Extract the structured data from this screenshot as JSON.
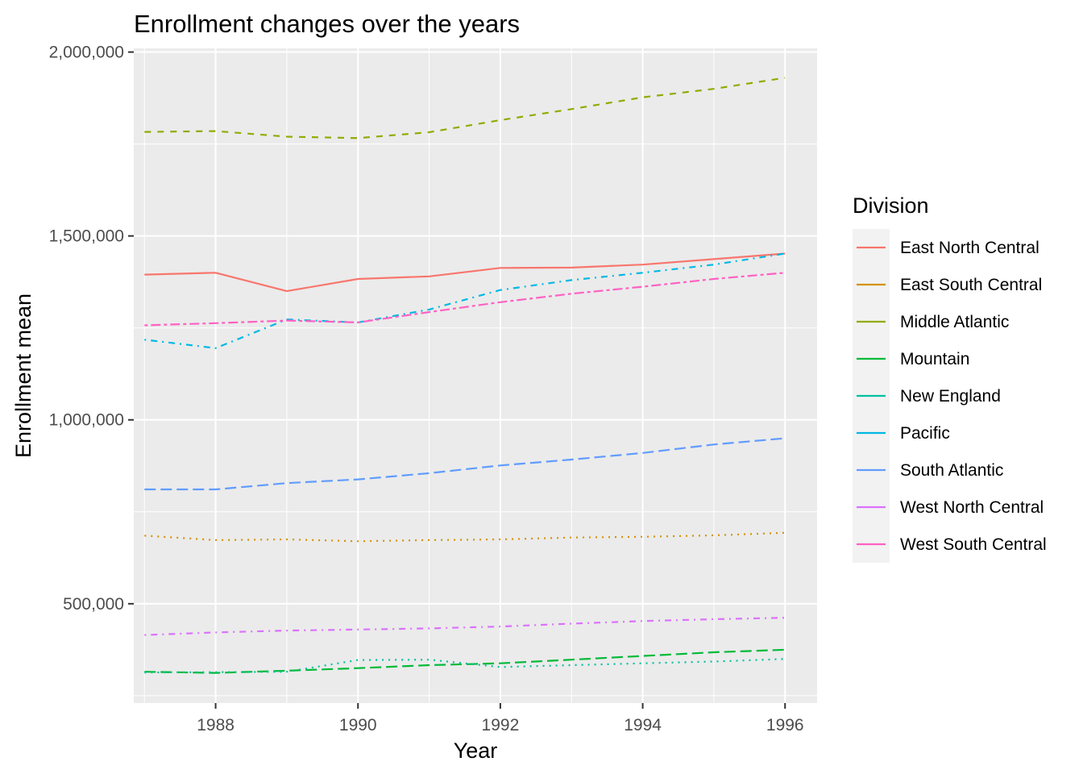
{
  "chart_data": {
    "type": "line",
    "title": "Enrollment changes over the years",
    "xlabel": "Year",
    "ylabel": "Enrollment mean",
    "xlim": [
      1986.85,
      1996.45
    ],
    "ylim": [
      230000,
      2010000
    ],
    "x_ticks": [
      1988,
      1990,
      1992,
      1994,
      1996
    ],
    "x_tick_labels": [
      "1988",
      "1990",
      "1992",
      "1994",
      "1996"
    ],
    "y_ticks": [
      500000,
      1000000,
      1500000,
      2000000
    ],
    "y_tick_labels": [
      "500,000",
      "1,000,000",
      "1,500,000",
      "2,000,000"
    ],
    "grid": true,
    "legend_title": "Division",
    "legend_position": "right",
    "x": [
      1987,
      1988,
      1989,
      1990,
      1991,
      1992,
      1993,
      1994,
      1995,
      1996
    ],
    "series": [
      {
        "name": "East North Central",
        "color": "#F8766D",
        "dash": "solid",
        "values": [
          1395000,
          1400000,
          1350000,
          1383000,
          1390000,
          1413000,
          1414000,
          1422000,
          1437000,
          1452000
        ]
      },
      {
        "name": "East South Central",
        "color": "#D39200",
        "dash": "dotted",
        "values": [
          685000,
          673000,
          675000,
          670000,
          673000,
          675000,
          680000,
          682000,
          686000,
          693000
        ]
      },
      {
        "name": "Middle Atlantic",
        "color": "#93AA00",
        "dash": "dashed",
        "values": [
          1783000,
          1785000,
          1770000,
          1766000,
          1782000,
          1815000,
          1845000,
          1877000,
          1900000,
          1930000
        ]
      },
      {
        "name": "Mountain",
        "color": "#00BA38",
        "dash": "longdash",
        "values": [
          315000,
          312000,
          318000,
          325000,
          333000,
          338000,
          348000,
          358000,
          368000,
          375000
        ]
      },
      {
        "name": "New England",
        "color": "#00C19F",
        "dash": "dotted",
        "values": [
          313000,
          314000,
          315000,
          347000,
          348000,
          328000,
          333000,
          338000,
          343000,
          350000
        ]
      },
      {
        "name": "Pacific",
        "color": "#00B9E3",
        "dash": "dotdash",
        "values": [
          1218000,
          1195000,
          1273000,
          1265000,
          1300000,
          1353000,
          1380000,
          1400000,
          1422000,
          1452000
        ]
      },
      {
        "name": "South Atlantic",
        "color": "#619CFF",
        "dash": "longdash",
        "values": [
          811000,
          811000,
          828000,
          838000,
          855000,
          876000,
          892000,
          910000,
          933000,
          950000
        ]
      },
      {
        "name": "West North Central",
        "color": "#DB72FB",
        "dash": "dotdash",
        "values": [
          415000,
          422000,
          427000,
          430000,
          433000,
          438000,
          446000,
          453000,
          458000,
          462000
        ]
      },
      {
        "name": "West South Central",
        "color": "#FF61C3",
        "dash": "twodash",
        "values": [
          1257000,
          1263000,
          1270000,
          1265000,
          1293000,
          1320000,
          1343000,
          1362000,
          1383000,
          1400000
        ]
      }
    ]
  },
  "colors": {
    "panel_background": "#EBEBEB",
    "grid_major": "#FFFFFF",
    "legend_key_background": "#F2F2F2"
  }
}
